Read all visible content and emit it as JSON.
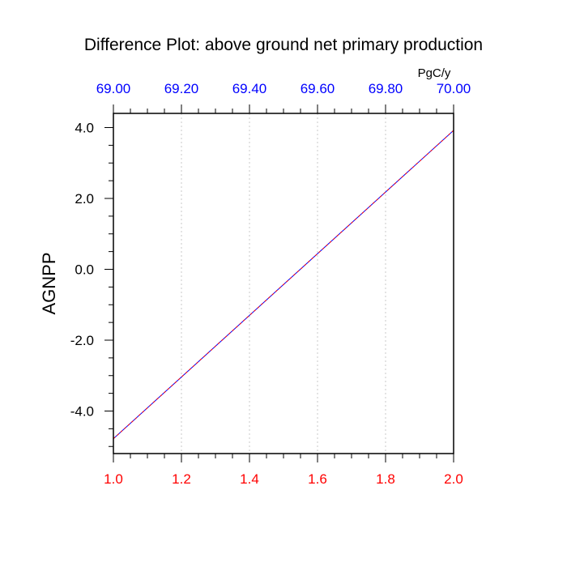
{
  "chart_data": {
    "type": "line",
    "title": "Difference Plot: above ground net primary production",
    "units": "PgC/y",
    "ylabel": "AGNPP",
    "xlim": [
      1.0,
      2.0
    ],
    "ylim": [
      -5.2,
      4.4
    ],
    "x_bottom_ticks": [
      "1.0",
      "1.2",
      "1.4",
      "1.6",
      "1.8",
      "2.0"
    ],
    "x_top_ticks": [
      "69.00",
      "69.20",
      "69.40",
      "69.60",
      "69.80",
      "70.00"
    ],
    "y_ticks": [
      "4.0",
      "2.0",
      "0.0",
      "-2.0",
      "-4.0"
    ],
    "grid": "vertical dotted",
    "colors": {
      "bottom_axis": "#ff0000",
      "top_axis": "#0000ff",
      "series_main": "#0000ff",
      "series_overlay": "#ff0000"
    },
    "series": [
      {
        "x": [
          1.0,
          2.0
        ],
        "values": [
          -4.78,
          3.92
        ]
      }
    ]
  }
}
